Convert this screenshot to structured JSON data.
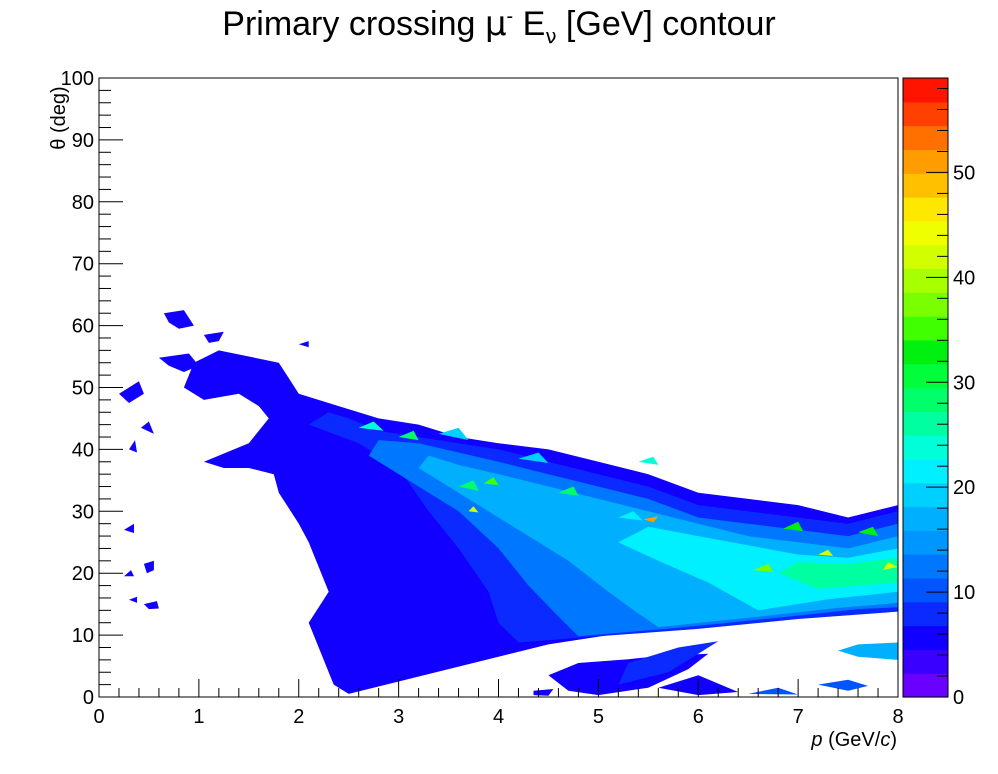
{
  "title": {
    "prefix": "Primary crossing ",
    "mu": "μ",
    "mu_sup": "-",
    "e": " E",
    "e_sub": "ν",
    "suffix": " [GeV] contour"
  },
  "chart_data": {
    "type": "heatmap",
    "xlabel_italic": "p",
    "xlabel_rest": " (GeV/",
    "xlabel_c": "c",
    "xlabel_close": ")",
    "ylabel": "θ (deg)",
    "xlim": [
      0,
      8
    ],
    "ylim": [
      0,
      100
    ],
    "zlim": [
      0,
      59
    ],
    "xticks": [
      "0",
      "1",
      "2",
      "3",
      "4",
      "5",
      "6",
      "7",
      "8"
    ],
    "yticks": [
      "0",
      "10",
      "20",
      "30",
      "40",
      "50",
      "60",
      "70",
      "80",
      "90",
      "100"
    ],
    "zticks": [
      "0",
      "10",
      "20",
      "30",
      "40",
      "50"
    ],
    "palette": [
      "#6a00ff",
      "#3a00ff",
      "#1100ff",
      "#0a2aff",
      "#0055ff",
      "#0077ff",
      "#0096ff",
      "#00b0ff",
      "#00d0ff",
      "#00f0ff",
      "#00ffd8",
      "#00ffa0",
      "#00ff6a",
      "#00ff3a",
      "#00f010",
      "#40ff00",
      "#7aff00",
      "#a8ff00",
      "#d2ff00",
      "#f0ff00",
      "#ffe800",
      "#ffc000",
      "#ff9c00",
      "#ff7000",
      "#ff4000",
      "#ff1400"
    ],
    "regions": [
      {
        "level": 2,
        "points": [
          [
            2.5,
            0.5
          ],
          [
            4.5,
            8.5
          ],
          [
            5.1,
            10
          ],
          [
            6.5,
            12
          ],
          [
            7.5,
            13.5
          ],
          [
            8,
            14
          ],
          [
            8,
            31
          ],
          [
            7.5,
            29
          ],
          [
            7,
            31
          ],
          [
            6.5,
            32
          ],
          [
            6,
            33
          ],
          [
            5.5,
            36
          ],
          [
            5,
            38
          ],
          [
            4.5,
            40
          ],
          [
            4,
            41
          ],
          [
            3.6,
            42
          ],
          [
            3.2,
            44
          ],
          [
            2.8,
            45
          ],
          [
            2.4,
            47
          ],
          [
            2.0,
            49
          ],
          [
            1.8,
            54
          ],
          [
            1.5,
            55
          ],
          [
            1.2,
            56
          ],
          [
            0.95,
            54
          ],
          [
            0.85,
            50
          ],
          [
            1.05,
            48
          ],
          [
            1.4,
            49
          ],
          [
            1.6,
            47
          ],
          [
            1.7,
            45
          ],
          [
            1.5,
            41
          ],
          [
            1.2,
            39
          ],
          [
            1.05,
            38
          ],
          [
            1.25,
            37
          ],
          [
            1.5,
            37
          ],
          [
            1.75,
            36
          ],
          [
            1.8,
            33
          ],
          [
            2.0,
            28
          ],
          [
            2.1,
            25
          ],
          [
            2.2,
            21
          ],
          [
            2.3,
            17
          ],
          [
            2.1,
            12
          ],
          [
            2.25,
            6
          ],
          [
            2.35,
            2
          ]
        ]
      },
      {
        "level": 2,
        "points": [
          [
            0.65,
            62
          ],
          [
            0.85,
            62.5
          ],
          [
            0.95,
            60
          ],
          [
            0.8,
            59.5
          ],
          [
            0.7,
            60.5
          ]
        ]
      },
      {
        "level": 2,
        "points": [
          [
            1.05,
            58.5
          ],
          [
            1.25,
            59
          ],
          [
            1.2,
            57.5
          ],
          [
            1.1,
            57.2
          ]
        ]
      },
      {
        "level": 2,
        "points": [
          [
            0.6,
            54.8
          ],
          [
            0.9,
            55.5
          ],
          [
            1.0,
            53.5
          ],
          [
            0.85,
            52.5
          ],
          [
            0.7,
            53.5
          ]
        ]
      },
      {
        "level": 2,
        "points": [
          [
            2.0,
            57
          ],
          [
            2.1,
            57.5
          ],
          [
            2.1,
            56.5
          ]
        ]
      },
      {
        "level": 2,
        "points": [
          [
            0.2,
            49
          ],
          [
            0.4,
            51
          ],
          [
            0.45,
            49
          ],
          [
            0.3,
            47.5
          ]
        ]
      },
      {
        "level": 2,
        "points": [
          [
            0.42,
            43.5
          ],
          [
            0.5,
            44.5
          ],
          [
            0.55,
            42.5
          ]
        ]
      },
      {
        "level": 2,
        "points": [
          [
            0.3,
            40
          ],
          [
            0.36,
            41.5
          ],
          [
            0.38,
            39.5
          ]
        ]
      },
      {
        "level": 2,
        "points": [
          [
            0.25,
            27
          ],
          [
            0.35,
            28
          ],
          [
            0.35,
            26.5
          ]
        ]
      },
      {
        "level": 2,
        "points": [
          [
            0.45,
            21.5
          ],
          [
            0.55,
            22
          ],
          [
            0.55,
            20.5
          ],
          [
            0.48,
            20
          ]
        ]
      },
      {
        "level": 2,
        "points": [
          [
            0.25,
            19.5
          ],
          [
            0.32,
            20.5
          ],
          [
            0.35,
            19.5
          ]
        ]
      },
      {
        "level": 2,
        "points": [
          [
            0.45,
            15
          ],
          [
            0.58,
            15.5
          ],
          [
            0.6,
            14.3
          ],
          [
            0.5,
            14.2
          ]
        ]
      },
      {
        "level": 2,
        "points": [
          [
            0.3,
            15.7
          ],
          [
            0.38,
            16.2
          ],
          [
            0.38,
            15.2
          ]
        ]
      },
      {
        "level": 2,
        "points": [
          [
            5.0,
            0.3
          ],
          [
            5.5,
            1.5
          ],
          [
            5.9,
            4.5
          ],
          [
            6.1,
            7
          ],
          [
            5.6,
            6.6
          ],
          [
            5.3,
            6.1
          ],
          [
            4.8,
            5.5
          ],
          [
            4.5,
            3.5
          ],
          [
            4.7,
            1
          ]
        ]
      },
      {
        "level": 2,
        "points": [
          [
            5.6,
            1.5
          ],
          [
            6.0,
            3.5
          ],
          [
            6.4,
            0.8
          ],
          [
            6.0,
            0.3
          ]
        ]
      },
      {
        "level": 2,
        "points": [
          [
            4.35,
            1
          ],
          [
            4.55,
            1.3
          ],
          [
            4.5,
            0.2
          ],
          [
            4.35,
            0.3
          ]
        ]
      },
      {
        "level": 3,
        "points": [
          [
            4.2,
            8.8
          ],
          [
            5.0,
            9.8
          ],
          [
            6.0,
            11
          ],
          [
            7.0,
            12.6
          ],
          [
            8,
            13.8
          ],
          [
            8,
            30
          ],
          [
            7.5,
            28
          ],
          [
            7,
            29
          ],
          [
            6.5,
            30
          ],
          [
            6,
            31
          ],
          [
            5.5,
            34
          ],
          [
            5,
            36
          ],
          [
            4.5,
            38
          ],
          [
            4,
            40
          ],
          [
            3.6,
            41
          ],
          [
            3.2,
            42
          ],
          [
            2.8,
            43
          ],
          [
            2.5,
            45
          ],
          [
            2.3,
            46
          ],
          [
            2.1,
            44
          ],
          [
            2.6,
            41
          ],
          [
            3.0,
            37
          ],
          [
            3.3,
            30
          ],
          [
            3.6,
            24
          ],
          [
            3.9,
            17
          ],
          [
            4.0,
            12
          ]
        ]
      },
      {
        "level": 3,
        "points": [
          [
            5.2,
            2
          ],
          [
            5.7,
            4
          ],
          [
            6.0,
            7
          ],
          [
            6.2,
            9
          ],
          [
            5.8,
            8
          ],
          [
            5.3,
            5.5
          ]
        ]
      },
      {
        "level": 5,
        "points": [
          [
            4.8,
            9.8
          ],
          [
            5.8,
            11.2
          ],
          [
            6.8,
            12.8
          ],
          [
            7.6,
            14.2
          ],
          [
            8,
            14.5
          ],
          [
            8,
            28
          ],
          [
            7.5,
            26
          ],
          [
            7,
            27
          ],
          [
            6.5,
            28
          ],
          [
            6,
            29
          ],
          [
            5.5,
            32
          ],
          [
            5,
            34
          ],
          [
            4.5,
            36
          ],
          [
            4,
            38
          ],
          [
            3.6,
            39.5
          ],
          [
            3.2,
            41
          ],
          [
            2.8,
            41.5
          ],
          [
            2.7,
            39
          ],
          [
            3.1,
            35
          ],
          [
            3.6,
            30
          ],
          [
            4.0,
            24
          ],
          [
            4.3,
            18
          ],
          [
            4.6,
            13
          ]
        ]
      },
      {
        "level": 7,
        "points": [
          [
            5.6,
            11.3
          ],
          [
            6.5,
            12.8
          ],
          [
            7.4,
            14.4
          ],
          [
            8,
            15.2
          ],
          [
            8,
            26
          ],
          [
            7.5,
            24
          ],
          [
            7,
            25
          ],
          [
            6.5,
            26
          ],
          [
            6,
            28
          ],
          [
            5.5,
            30
          ],
          [
            5,
            32
          ],
          [
            4.5,
            34
          ],
          [
            4,
            36
          ],
          [
            3.6,
            37.5
          ],
          [
            3.3,
            39
          ],
          [
            3.2,
            37
          ],
          [
            3.7,
            32
          ],
          [
            4.2,
            27
          ],
          [
            4.7,
            22
          ],
          [
            5.1,
            17
          ],
          [
            5.4,
            13.5
          ]
        ]
      },
      {
        "level": 9,
        "points": [
          [
            6.6,
            14
          ],
          [
            7.3,
            15.8
          ],
          [
            8,
            17
          ],
          [
            8,
            24
          ],
          [
            7.5,
            22.5
          ],
          [
            7,
            23
          ],
          [
            6.5,
            24.5
          ],
          [
            6,
            26
          ],
          [
            5.5,
            27.5
          ],
          [
            5.2,
            25
          ],
          [
            5.6,
            22
          ],
          [
            6.1,
            18.5
          ]
        ]
      },
      {
        "level": 11,
        "points": [
          [
            7.2,
            17.5
          ],
          [
            8,
            18.5
          ],
          [
            8,
            22.5
          ],
          [
            7.5,
            21.5
          ],
          [
            7,
            21.8
          ],
          [
            6.8,
            20
          ]
        ]
      },
      {
        "level": 8,
        "points": [
          [
            3.4,
            42.5
          ],
          [
            3.6,
            43.5
          ],
          [
            3.7,
            41.5
          ]
        ]
      },
      {
        "level": 8,
        "points": [
          [
            4.2,
            38.5
          ],
          [
            4.4,
            39.5
          ],
          [
            4.5,
            37.8
          ]
        ]
      },
      {
        "level": 9,
        "points": [
          [
            5.2,
            29
          ],
          [
            5.35,
            30
          ],
          [
            5.45,
            28.5
          ]
        ]
      },
      {
        "level": 10,
        "points": [
          [
            2.6,
            43.5
          ],
          [
            2.75,
            44.5
          ],
          [
            2.85,
            43
          ]
        ]
      },
      {
        "level": 10,
        "points": [
          [
            5.4,
            38
          ],
          [
            5.55,
            38.8
          ],
          [
            5.6,
            37.5
          ]
        ]
      },
      {
        "level": 12,
        "points": [
          [
            3.0,
            42
          ],
          [
            3.15,
            43
          ],
          [
            3.2,
            41.5
          ]
        ]
      },
      {
        "level": 12,
        "points": [
          [
            4.6,
            33
          ],
          [
            4.75,
            34
          ],
          [
            4.8,
            32.5
          ]
        ]
      },
      {
        "level": 12,
        "points": [
          [
            3.6,
            34
          ],
          [
            3.75,
            35
          ],
          [
            3.8,
            33.3
          ]
        ]
      },
      {
        "level": 14,
        "points": [
          [
            6.85,
            27.2
          ],
          [
            7.0,
            28.3
          ],
          [
            7.05,
            26.8
          ]
        ]
      },
      {
        "level": 14,
        "points": [
          [
            7.6,
            26.6
          ],
          [
            7.75,
            27.5
          ],
          [
            7.8,
            26
          ]
        ]
      },
      {
        "level": 15,
        "points": [
          [
            3.85,
            34.5
          ],
          [
            3.95,
            35.5
          ],
          [
            4.0,
            34.2
          ]
        ]
      },
      {
        "level": 16,
        "points": [
          [
            6.55,
            20.5
          ],
          [
            6.7,
            21.5
          ],
          [
            6.75,
            20.2
          ]
        ]
      },
      {
        "level": 18,
        "points": [
          [
            7.2,
            23
          ],
          [
            7.3,
            23.8
          ],
          [
            7.35,
            22.8
          ]
        ]
      },
      {
        "level": 18,
        "points": [
          [
            8.0,
            21
          ],
          [
            7.9,
            21.8
          ],
          [
            7.85,
            20.5
          ]
        ]
      },
      {
        "level": 18,
        "points": [
          [
            3.7,
            30
          ],
          [
            3.75,
            30.8
          ],
          [
            3.8,
            29.8
          ]
        ]
      },
      {
        "level": 22,
        "points": [
          [
            5.45,
            28.7
          ],
          [
            5.6,
            29.2
          ],
          [
            5.55,
            28.2
          ]
        ]
      },
      {
        "level": 7,
        "points": [
          [
            7.9,
            25
          ],
          [
            8,
            26
          ],
          [
            8,
            24.5
          ]
        ]
      },
      {
        "level": 7,
        "points": [
          [
            8,
            6
          ],
          [
            7.6,
            6.5
          ],
          [
            7.4,
            7.5
          ],
          [
            7.6,
            8.5
          ],
          [
            8,
            8.8
          ]
        ]
      },
      {
        "level": 4,
        "points": [
          [
            7.2,
            2
          ],
          [
            7.5,
            2.8
          ],
          [
            7.7,
            1.8
          ],
          [
            7.5,
            1
          ]
        ]
      },
      {
        "level": 4,
        "points": [
          [
            6.5,
            0.5
          ],
          [
            6.8,
            1.5
          ],
          [
            7.0,
            0.4
          ]
        ]
      }
    ]
  }
}
